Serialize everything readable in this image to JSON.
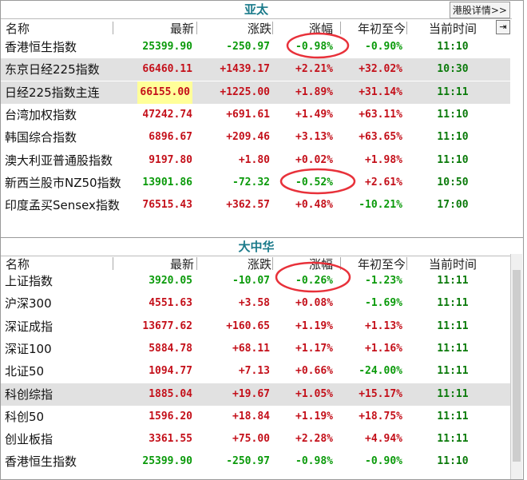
{
  "panels": [
    {
      "title": "亚太",
      "button": "港股详情>>",
      "columns": [
        "名称",
        "最新",
        "涨跌",
        "涨幅",
        "年初至今",
        "当前时间"
      ],
      "highlight_rows": [
        1,
        2
      ],
      "yellow_cell": [
        2,
        1
      ],
      "rows": [
        [
          "香港恒生指数",
          "25399.90",
          "-250.97",
          "-0.98%",
          "-0.90%",
          "11:10"
        ],
        [
          "东京日经225指数",
          "66460.11",
          "+1439.17",
          "+2.21%",
          "+32.02%",
          "10:30"
        ],
        [
          "日经225指数主连",
          "66155.00",
          "+1225.00",
          "+1.89%",
          "+31.14%",
          "11:11"
        ],
        [
          "台湾加权指数",
          "47242.74",
          "+691.61",
          "+1.49%",
          "+63.11%",
          "11:10"
        ],
        [
          "韩国综合指数",
          "6896.67",
          "+209.46",
          "+3.13%",
          "+63.65%",
          "11:10"
        ],
        [
          "澳大利亚普通股指数",
          "9197.80",
          "+1.80",
          "+0.02%",
          "+1.98%",
          "11:10"
        ],
        [
          "新西兰股市NZ50指数",
          "13901.86",
          "-72.32",
          "-0.52%",
          "+2.61%",
          "10:50"
        ],
        [
          "印度孟买Sensex指数",
          "76515.43",
          "+362.57",
          "+0.48%",
          "-10.21%",
          "17:00"
        ]
      ]
    },
    {
      "title": "大中华",
      "columns": [
        "名称",
        "最新",
        "涨跌",
        "涨幅",
        "年初至今",
        "当前时间"
      ],
      "highlight_rows": [
        5
      ],
      "rows": [
        [
          "上证指数",
          "3920.05",
          "-10.07",
          "-0.26%",
          "-1.23%",
          "11:11"
        ],
        [
          "沪深300",
          "4551.63",
          "+3.58",
          "+0.08%",
          "-1.69%",
          "11:11"
        ],
        [
          "深证成指",
          "13677.62",
          "+160.65",
          "+1.19%",
          "+1.13%",
          "11:11"
        ],
        [
          "深证100",
          "5884.78",
          "+68.11",
          "+1.17%",
          "+1.16%",
          "11:11"
        ],
        [
          "北证50",
          "1094.77",
          "+7.13",
          "+0.66%",
          "-24.00%",
          "11:11"
        ],
        [
          "科创综指",
          "1885.04",
          "+19.67",
          "+1.05%",
          "+15.17%",
          "11:11"
        ],
        [
          "科创50",
          "1596.20",
          "+18.84",
          "+1.19%",
          "+18.75%",
          "11:11"
        ],
        [
          "创业板指",
          "3361.55",
          "+75.00",
          "+2.28%",
          "+4.94%",
          "11:11"
        ],
        [
          "香港恒生指数",
          "25399.90",
          "-250.97",
          "-0.98%",
          "-0.90%",
          "11:10"
        ]
      ]
    }
  ]
}
